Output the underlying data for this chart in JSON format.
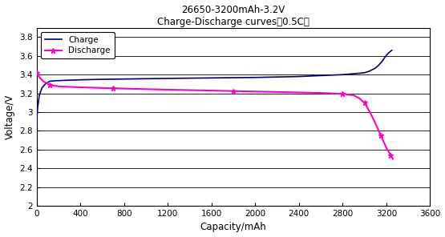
{
  "title_line1": "26650-3200mAh-3.2V",
  "title_line2": "Charge-Discharge curves（0.5C）",
  "xlabel": "Capacity/mAh",
  "ylabel": "Voltage/V",
  "xlim": [
    0,
    3600
  ],
  "ylim": [
    2.0,
    3.9
  ],
  "xticks": [
    0,
    400,
    800,
    1200,
    1600,
    2000,
    2400,
    2800,
    3200,
    3600
  ],
  "yticks": [
    2.0,
    2.2,
    2.4,
    2.6,
    2.8,
    3.0,
    3.2,
    3.4,
    3.6,
    3.8
  ],
  "charge_color": "#000080",
  "discharge_color": "#FF00CC",
  "bg_color": "#FFFFFF",
  "legend_charge": "Charge",
  "legend_discharge": "Discharge",
  "charge_x": [
    0,
    10,
    25,
    50,
    80,
    120,
    180,
    280,
    400,
    600,
    900,
    1200,
    1600,
    2000,
    2400,
    2800,
    3000,
    3050,
    3100,
    3130,
    3160,
    3190,
    3210,
    3230,
    3250
  ],
  "charge_y": [
    2.9,
    3.05,
    3.18,
    3.26,
    3.3,
    3.33,
    3.335,
    3.34,
    3.345,
    3.35,
    3.355,
    3.36,
    3.365,
    3.37,
    3.38,
    3.4,
    3.42,
    3.44,
    3.47,
    3.5,
    3.54,
    3.59,
    3.62,
    3.64,
    3.66
  ],
  "discharge_x": [
    0,
    20,
    60,
    120,
    200,
    400,
    700,
    1000,
    1400,
    1800,
    2200,
    2600,
    2800,
    2900,
    2950,
    3000,
    3050,
    3100,
    3150,
    3200,
    3220,
    3240,
    3260
  ],
  "discharge_y": [
    3.42,
    3.38,
    3.33,
    3.29,
    3.275,
    3.265,
    3.255,
    3.245,
    3.235,
    3.225,
    3.215,
    3.205,
    3.195,
    3.18,
    3.15,
    3.1,
    3.0,
    2.88,
    2.75,
    2.62,
    2.58,
    2.54,
    2.5
  ]
}
